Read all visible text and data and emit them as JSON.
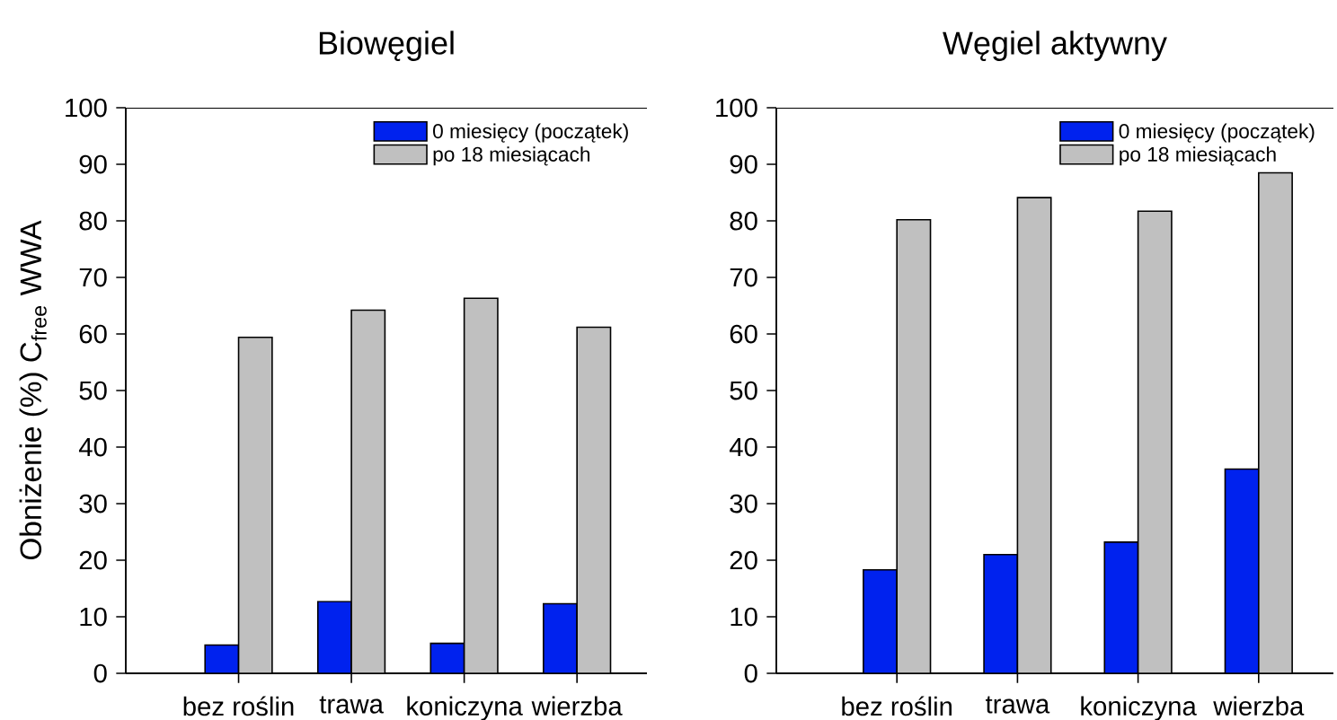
{
  "chart_data": [
    {
      "type": "bar",
      "title": "Biowęgiel",
      "ylabel": "Obniżenie (%) C$_{free}$ WWA",
      "categories": [
        "bez roślin",
        "trawa",
        "koniczyna",
        "wierzba"
      ],
      "series": [
        {
          "name": "0 miesięcy (początek)",
          "color": "#0022ee",
          "values": [
            5.0,
            12.7,
            5.3,
            12.3
          ]
        },
        {
          "name": "po 18 miesiącach",
          "color": "#c0c0c0",
          "values": [
            59.4,
            64.2,
            66.3,
            61.2
          ]
        }
      ],
      "ylim": [
        0,
        100
      ],
      "yticks": [
        0,
        10,
        20,
        30,
        40,
        50,
        60,
        70,
        80,
        90,
        100
      ],
      "legend": "top right"
    },
    {
      "type": "bar",
      "title": "Węgiel aktywny",
      "categories": [
        "bez roślin",
        "trawa",
        "koniczyna",
        "wierzba"
      ],
      "series": [
        {
          "name": "0 miesięcy (początek)",
          "color": "#0022ee",
          "values": [
            18.3,
            21.0,
            23.2,
            36.1
          ]
        },
        {
          "name": "po 18 miesiącach",
          "color": "#c0c0c0",
          "values": [
            80.2,
            84.1,
            81.7,
            88.5
          ]
        }
      ],
      "ylim": [
        0,
        100
      ],
      "yticks": [
        0,
        10,
        20,
        30,
        40,
        50,
        60,
        70,
        80,
        90,
        100
      ],
      "legend": "top right"
    }
  ]
}
